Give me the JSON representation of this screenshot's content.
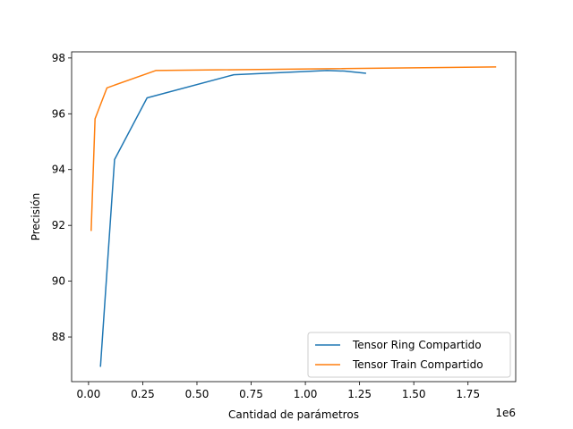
{
  "chart_data": {
    "type": "line",
    "title": "",
    "xlabel": "Cantidad de parámetros",
    "ylabel": "Precisión",
    "x_offset_label": "1e6",
    "xlim": [
      -0.078,
      1.97
    ],
    "ylim": [
      86.4,
      98.22
    ],
    "x_ticks": [
      0.0,
      0.25,
      0.5,
      0.75,
      1.0,
      1.25,
      1.5,
      1.75
    ],
    "x_tick_labels": [
      "0.00",
      "0.25",
      "0.50",
      "0.75",
      "1.00",
      "1.25",
      "1.50",
      "1.75"
    ],
    "y_ticks": [
      88,
      90,
      92,
      94,
      96,
      98
    ],
    "y_tick_labels": [
      "88",
      "90",
      "92",
      "94",
      "96",
      "98"
    ],
    "grid": false,
    "legend_position": "lower-right",
    "series": [
      {
        "name": "Tensor Ring Compartido",
        "color": "#1f77b4",
        "x": [
          0.055,
          0.12,
          0.27,
          0.67,
          1.1,
          1.18,
          1.28
        ],
        "y": [
          86.93,
          94.36,
          96.57,
          97.4,
          97.55,
          97.53,
          97.45
        ]
      },
      {
        "name": "Tensor Train Compartido",
        "color": "#ff7f0e",
        "x": [
          0.012,
          0.03,
          0.085,
          0.31,
          1.88
        ],
        "y": [
          91.8,
          95.82,
          96.93,
          97.55,
          97.68
        ]
      }
    ]
  }
}
